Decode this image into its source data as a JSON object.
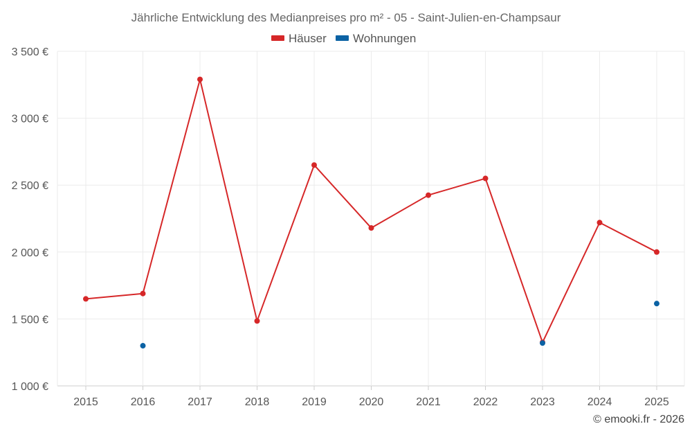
{
  "chart_data": {
    "type": "line",
    "title": "Jährliche Entwicklung des Medianpreises pro m² - 05 - Saint-Julien-en-Champsaur",
    "categories": [
      "2015",
      "2016",
      "2017",
      "2018",
      "2019",
      "2020",
      "2021",
      "2022",
      "2023",
      "2024",
      "2025"
    ],
    "series": [
      {
        "name": "Häuser",
        "color": "#d62728",
        "values": [
          1650,
          1690,
          3290,
          1485,
          2650,
          2180,
          2425,
          2550,
          1325,
          2220,
          2000
        ]
      },
      {
        "name": "Wohnungen",
        "color": "#0b62a4",
        "values": [
          null,
          1300,
          null,
          null,
          null,
          null,
          null,
          null,
          1320,
          null,
          1615
        ]
      }
    ],
    "ylim": [
      1000,
      3500
    ],
    "yticks": [
      1000,
      1500,
      2000,
      2500,
      3000,
      3500
    ],
    "ytick_labels": [
      "1 000 €",
      "1 500 €",
      "2 000 €",
      "2 500 €",
      "3 000 €",
      "3 500 €"
    ],
    "legend_position": "top-center",
    "grid": true
  },
  "credit": "© emooki.fr - 2026"
}
